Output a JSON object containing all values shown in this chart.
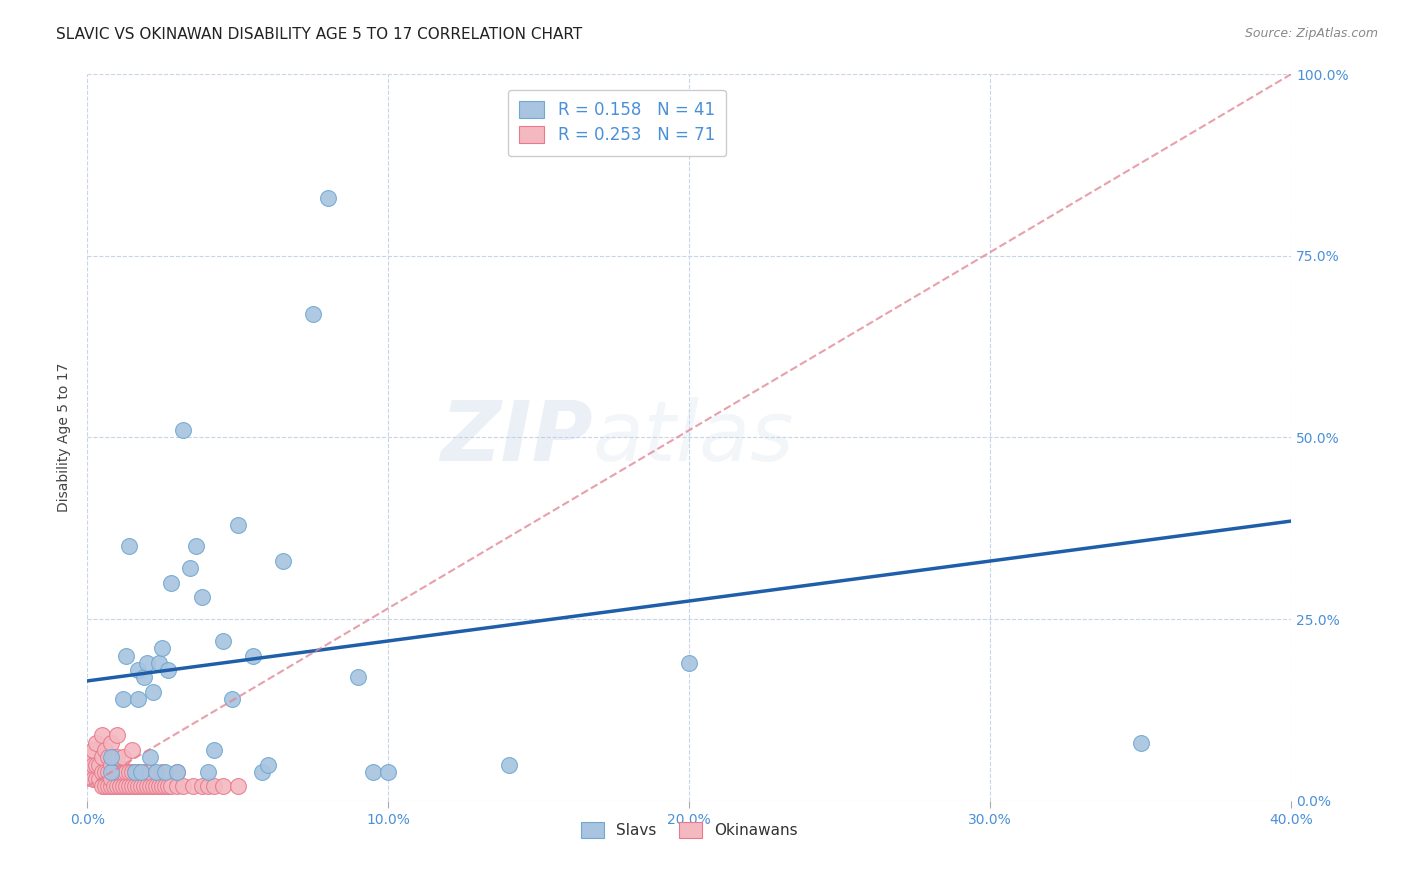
{
  "title": "SLAVIC VS OKINAWAN DISABILITY AGE 5 TO 17 CORRELATION CHART",
  "source": "Source: ZipAtlas.com",
  "ylabel_label": "Disability Age 5 to 17",
  "xlim": [
    0.0,
    0.4
  ],
  "ylim": [
    0.0,
    1.0
  ],
  "xticks": [
    0.0,
    0.1,
    0.2,
    0.3,
    0.4
  ],
  "xtick_labels": [
    "0.0%",
    "10.0%",
    "20.0%",
    "30.0%",
    "40.0%"
  ],
  "ytick_labels_right": [
    "0.0%",
    "25.0%",
    "50.0%",
    "75.0%",
    "100.0%"
  ],
  "yticks_right": [
    0.0,
    0.25,
    0.5,
    0.75,
    1.0
  ],
  "slavs_color": "#a8c4e0",
  "slavs_edge_color": "#6fa8d0",
  "okinawans_color": "#f4b8c1",
  "okinawans_edge_color": "#e87a8c",
  "slavs_R": 0.158,
  "slavs_N": 41,
  "okinawans_R": 0.253,
  "okinawans_N": 71,
  "slavs_line_color": "#1f5faa",
  "okinawans_line_color": "#e08090",
  "legend_R_color": "#4a90d9",
  "watermark": "ZIPatlas",
  "slavs_x": [
    0.008,
    0.008,
    0.012,
    0.013,
    0.014,
    0.016,
    0.017,
    0.017,
    0.018,
    0.019,
    0.02,
    0.021,
    0.022,
    0.023,
    0.024,
    0.025,
    0.026,
    0.027,
    0.028,
    0.03,
    0.032,
    0.034,
    0.036,
    0.038,
    0.04,
    0.042,
    0.045,
    0.048,
    0.05,
    0.055,
    0.058,
    0.06,
    0.065,
    0.075,
    0.08,
    0.09,
    0.095,
    0.1,
    0.14,
    0.2,
    0.35
  ],
  "slavs_y": [
    0.04,
    0.06,
    0.14,
    0.2,
    0.35,
    0.04,
    0.14,
    0.18,
    0.04,
    0.17,
    0.19,
    0.06,
    0.15,
    0.04,
    0.19,
    0.21,
    0.04,
    0.18,
    0.3,
    0.04,
    0.51,
    0.32,
    0.35,
    0.28,
    0.04,
    0.07,
    0.22,
    0.14,
    0.38,
    0.2,
    0.04,
    0.05,
    0.33,
    0.67,
    0.83,
    0.17,
    0.04,
    0.04,
    0.05,
    0.19,
    0.08
  ],
  "okinawans_x": [
    0.001,
    0.001,
    0.002,
    0.002,
    0.002,
    0.003,
    0.003,
    0.003,
    0.004,
    0.004,
    0.005,
    0.005,
    0.005,
    0.005,
    0.006,
    0.006,
    0.006,
    0.007,
    0.007,
    0.007,
    0.008,
    0.008,
    0.008,
    0.008,
    0.009,
    0.009,
    0.009,
    0.01,
    0.01,
    0.01,
    0.01,
    0.011,
    0.011,
    0.012,
    0.012,
    0.012,
    0.013,
    0.013,
    0.014,
    0.014,
    0.015,
    0.015,
    0.015,
    0.016,
    0.016,
    0.017,
    0.017,
    0.018,
    0.019,
    0.019,
    0.02,
    0.02,
    0.021,
    0.021,
    0.022,
    0.023,
    0.024,
    0.025,
    0.025,
    0.026,
    0.027,
    0.028,
    0.03,
    0.03,
    0.032,
    0.035,
    0.038,
    0.04,
    0.042,
    0.045,
    0.05
  ],
  "okinawans_y": [
    0.04,
    0.06,
    0.03,
    0.05,
    0.07,
    0.03,
    0.05,
    0.08,
    0.03,
    0.05,
    0.02,
    0.04,
    0.06,
    0.09,
    0.02,
    0.04,
    0.07,
    0.02,
    0.04,
    0.06,
    0.02,
    0.03,
    0.05,
    0.08,
    0.02,
    0.04,
    0.06,
    0.02,
    0.04,
    0.06,
    0.09,
    0.02,
    0.04,
    0.02,
    0.04,
    0.06,
    0.02,
    0.04,
    0.02,
    0.04,
    0.02,
    0.04,
    0.07,
    0.02,
    0.04,
    0.02,
    0.04,
    0.02,
    0.02,
    0.04,
    0.02,
    0.04,
    0.02,
    0.04,
    0.02,
    0.02,
    0.02,
    0.02,
    0.04,
    0.02,
    0.02,
    0.02,
    0.02,
    0.04,
    0.02,
    0.02,
    0.02,
    0.02,
    0.02,
    0.02,
    0.02
  ],
  "background_color": "#ffffff",
  "grid_color": "#c8d4e8",
  "title_fontsize": 11,
  "axis_label_fontsize": 10,
  "tick_fontsize": 10,
  "marker_size": 130
}
